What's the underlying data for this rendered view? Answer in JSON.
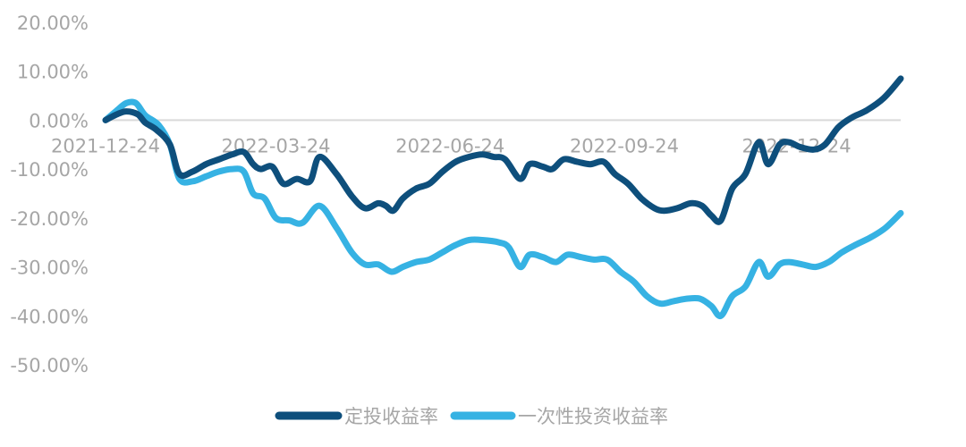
{
  "chart_data": {
    "type": "line",
    "ylim": [
      -0.5,
      0.2
    ],
    "y_ticks": [
      "20.00%",
      "10.00%",
      "0.00%",
      "-10.00%",
      "-20.00%",
      "-30.00%",
      "-40.00%",
      "-50.00%"
    ],
    "y_tick_values": [
      0.2,
      0.1,
      0.0,
      -0.1,
      -0.2,
      -0.3,
      -0.4,
      -0.5
    ],
    "x_ticks": [
      "2021-12-24",
      "2022-03-24",
      "2022-06-24",
      "2022-09-24",
      "2022-12-24"
    ],
    "xlim": [
      "2021-12-24",
      "2023-02-17"
    ],
    "grid": false,
    "legend_position": "bottom-center",
    "series": [
      {
        "name": "定投收益率",
        "color": "#0e4f7c",
        "points": [
          [
            "2021-12-24",
            0.0
          ],
          [
            "2021-12-30",
            0.012
          ],
          [
            "2022-01-04",
            0.018
          ],
          [
            "2022-01-10",
            0.012
          ],
          [
            "2022-01-14",
            -0.005
          ],
          [
            "2022-01-20",
            -0.02
          ],
          [
            "2022-01-27",
            -0.05
          ],
          [
            "2022-02-01",
            -0.11
          ],
          [
            "2022-02-08",
            -0.105
          ],
          [
            "2022-02-15",
            -0.09
          ],
          [
            "2022-02-22",
            -0.08
          ],
          [
            "2022-03-01",
            -0.07
          ],
          [
            "2022-03-07",
            -0.065
          ],
          [
            "2022-03-12",
            -0.09
          ],
          [
            "2022-03-16",
            -0.1
          ],
          [
            "2022-03-22",
            -0.095
          ],
          [
            "2022-03-28",
            -0.13
          ],
          [
            "2022-04-04",
            -0.12
          ],
          [
            "2022-04-11",
            -0.125
          ],
          [
            "2022-04-16",
            -0.075
          ],
          [
            "2022-04-25",
            -0.11
          ],
          [
            "2022-05-03",
            -0.155
          ],
          [
            "2022-05-10",
            -0.18
          ],
          [
            "2022-05-17",
            -0.17
          ],
          [
            "2022-05-21",
            -0.175
          ],
          [
            "2022-05-25",
            -0.185
          ],
          [
            "2022-05-30",
            -0.16
          ],
          [
            "2022-06-06",
            -0.14
          ],
          [
            "2022-06-13",
            -0.13
          ],
          [
            "2022-06-20",
            -0.105
          ],
          [
            "2022-06-27",
            -0.085
          ],
          [
            "2022-07-04",
            -0.075
          ],
          [
            "2022-07-11",
            -0.07
          ],
          [
            "2022-07-17",
            -0.075
          ],
          [
            "2022-07-23",
            -0.08
          ],
          [
            "2022-07-31",
            -0.12
          ],
          [
            "2022-08-05",
            -0.09
          ],
          [
            "2022-08-12",
            -0.095
          ],
          [
            "2022-08-17",
            -0.1
          ],
          [
            "2022-08-23",
            -0.08
          ],
          [
            "2022-08-30",
            -0.085
          ],
          [
            "2022-09-06",
            -0.09
          ],
          [
            "2022-09-13",
            -0.085
          ],
          [
            "2022-09-19",
            -0.11
          ],
          [
            "2022-09-26",
            -0.13
          ],
          [
            "2022-10-03",
            -0.16
          ],
          [
            "2022-10-10",
            -0.18
          ],
          [
            "2022-10-15",
            -0.185
          ],
          [
            "2022-10-22",
            -0.18
          ],
          [
            "2022-10-29",
            -0.17
          ],
          [
            "2022-11-04",
            -0.175
          ],
          [
            "2022-11-09",
            -0.195
          ],
          [
            "2022-11-14",
            -0.205
          ],
          [
            "2022-11-20",
            -0.14
          ],
          [
            "2022-11-27",
            -0.11
          ],
          [
            "2022-12-04",
            -0.045
          ],
          [
            "2022-12-09",
            -0.09
          ],
          [
            "2022-12-15",
            -0.05
          ],
          [
            "2022-12-20",
            -0.045
          ],
          [
            "2022-12-26",
            -0.055
          ],
          [
            "2023-01-02",
            -0.06
          ],
          [
            "2023-01-08",
            -0.05
          ],
          [
            "2023-01-15",
            -0.015
          ],
          [
            "2023-01-22",
            0.005
          ],
          [
            "2023-01-30",
            0.02
          ],
          [
            "2023-02-08",
            0.045
          ],
          [
            "2023-02-17",
            0.085
          ]
        ]
      },
      {
        "name": "一次性投资收益率",
        "color": "#36b2e3",
        "points": [
          [
            "2021-12-24",
            0.0
          ],
          [
            "2021-12-30",
            0.02
          ],
          [
            "2022-01-04",
            0.035
          ],
          [
            "2022-01-09",
            0.035
          ],
          [
            "2022-01-14",
            0.01
          ],
          [
            "2022-01-21",
            -0.01
          ],
          [
            "2022-01-27",
            -0.05
          ],
          [
            "2022-02-01",
            -0.12
          ],
          [
            "2022-02-08",
            -0.125
          ],
          [
            "2022-02-15",
            -0.115
          ],
          [
            "2022-02-22",
            -0.105
          ],
          [
            "2022-03-01",
            -0.1
          ],
          [
            "2022-03-07",
            -0.105
          ],
          [
            "2022-03-12",
            -0.15
          ],
          [
            "2022-03-18",
            -0.16
          ],
          [
            "2022-03-24",
            -0.2
          ],
          [
            "2022-03-31",
            -0.205
          ],
          [
            "2022-04-07",
            -0.21
          ],
          [
            "2022-04-16",
            -0.175
          ],
          [
            "2022-04-25",
            -0.22
          ],
          [
            "2022-05-03",
            -0.27
          ],
          [
            "2022-05-10",
            -0.295
          ],
          [
            "2022-05-17",
            -0.295
          ],
          [
            "2022-05-24",
            -0.31
          ],
          [
            "2022-05-30",
            -0.3
          ],
          [
            "2022-06-06",
            -0.29
          ],
          [
            "2022-06-13",
            -0.285
          ],
          [
            "2022-06-20",
            -0.27
          ],
          [
            "2022-06-27",
            -0.255
          ],
          [
            "2022-07-04",
            -0.245
          ],
          [
            "2022-07-11",
            -0.245
          ],
          [
            "2022-07-20",
            -0.25
          ],
          [
            "2022-07-25",
            -0.26
          ],
          [
            "2022-07-31",
            -0.3
          ],
          [
            "2022-08-05",
            -0.275
          ],
          [
            "2022-08-12",
            -0.28
          ],
          [
            "2022-08-19",
            -0.29
          ],
          [
            "2022-08-25",
            -0.275
          ],
          [
            "2022-09-01",
            -0.28
          ],
          [
            "2022-09-08",
            -0.285
          ],
          [
            "2022-09-15",
            -0.285
          ],
          [
            "2022-09-22",
            -0.31
          ],
          [
            "2022-09-29",
            -0.33
          ],
          [
            "2022-10-06",
            -0.36
          ],
          [
            "2022-10-13",
            -0.375
          ],
          [
            "2022-10-20",
            -0.37
          ],
          [
            "2022-10-27",
            -0.365
          ],
          [
            "2022-11-03",
            -0.365
          ],
          [
            "2022-11-09",
            -0.38
          ],
          [
            "2022-11-14",
            -0.4
          ],
          [
            "2022-11-20",
            -0.36
          ],
          [
            "2022-11-27",
            -0.34
          ],
          [
            "2022-12-04",
            -0.29
          ],
          [
            "2022-12-09",
            -0.32
          ],
          [
            "2022-12-15",
            -0.295
          ],
          [
            "2022-12-20",
            -0.29
          ],
          [
            "2022-12-27",
            -0.295
          ],
          [
            "2023-01-03",
            -0.3
          ],
          [
            "2023-01-10",
            -0.29
          ],
          [
            "2023-01-17",
            -0.27
          ],
          [
            "2023-01-24",
            -0.255
          ],
          [
            "2023-02-01",
            -0.24
          ],
          [
            "2023-02-09",
            -0.22
          ],
          [
            "2023-02-17",
            -0.19
          ]
        ]
      }
    ]
  }
}
